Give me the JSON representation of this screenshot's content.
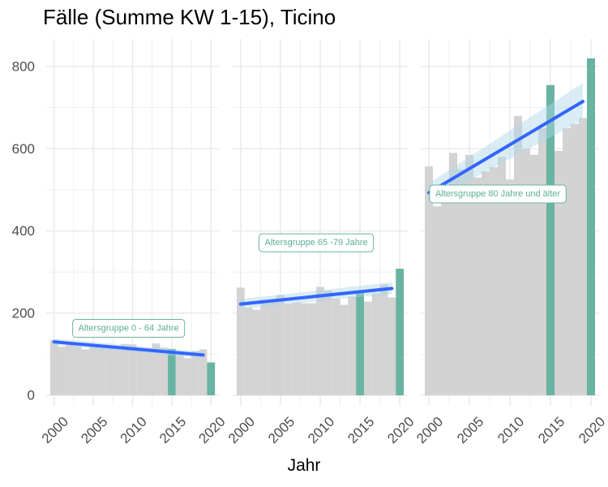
{
  "chart_data": {
    "type": "bar",
    "title": "Fälle (Summe KW 1-15), Ticino",
    "xlabel": "Jahr",
    "ylabel": "",
    "ylim": [
      0,
      860
    ],
    "xlim": [
      1999,
      2021
    ],
    "x_ticks": [
      2000,
      2005,
      2010,
      2015,
      2020
    ],
    "y_ticks": [
      0,
      200,
      400,
      600,
      800
    ],
    "colors": {
      "bar_default": "#d3d3d3",
      "bar_highlight": "#69b3a2",
      "trend_line": "#3366ff",
      "ci_band": "#add8e6",
      "annotation_text": "#5aae98",
      "annotation_border": "#69b3a2",
      "grid": "#ebebeb"
    },
    "highlight_years": [
      2015,
      2020
    ],
    "panels": [
      {
        "annotation": "Altersgruppe 0 - 64 Jahre",
        "annotation_year": 2009.5,
        "annotation_value": 163,
        "years": [
          2000,
          2001,
          2002,
          2003,
          2004,
          2005,
          2006,
          2007,
          2008,
          2009,
          2010,
          2011,
          2012,
          2013,
          2014,
          2015,
          2016,
          2017,
          2018,
          2019,
          2020
        ],
        "values": [
          135,
          118,
          128,
          120,
          112,
          122,
          115,
          118,
          112,
          125,
          124,
          112,
          108,
          126,
          116,
          113,
          98,
          90,
          108,
          112,
          80
        ],
        "trend": {
          "x": [
            2000,
            2019
          ],
          "y": [
            130,
            98
          ]
        },
        "ci": {
          "x": [
            2000,
            2019
          ],
          "upper": [
            138,
            106
          ],
          "lower": [
            122,
            90
          ]
        }
      },
      {
        "annotation": "Altersgruppe 65 -79 Jahre",
        "annotation_year": 2009.5,
        "annotation_value": 371,
        "years": [
          2000,
          2001,
          2002,
          2003,
          2004,
          2005,
          2006,
          2007,
          2008,
          2009,
          2010,
          2011,
          2012,
          2013,
          2014,
          2015,
          2016,
          2017,
          2018,
          2019,
          2020
        ],
        "values": [
          262,
          213,
          208,
          232,
          228,
          244,
          222,
          225,
          224,
          224,
          264,
          255,
          235,
          220,
          240,
          253,
          228,
          248,
          270,
          238,
          308
        ],
        "trend": {
          "x": [
            2000,
            2019
          ],
          "y": [
            222,
            260
          ]
        },
        "ci": {
          "x": [
            2000,
            2019
          ],
          "upper": [
            234,
            275
          ],
          "lower": [
            210,
            247
          ]
        }
      },
      {
        "annotation": "Altersgruppe 80 Jahre und älter",
        "annotation_year": 2008.5,
        "annotation_value": 490,
        "years": [
          2000,
          2001,
          2002,
          2003,
          2004,
          2005,
          2006,
          2007,
          2008,
          2009,
          2010,
          2011,
          2012,
          2013,
          2014,
          2015,
          2016,
          2017,
          2018,
          2019,
          2020
        ],
        "values": [
          557,
          460,
          500,
          590,
          550,
          585,
          530,
          545,
          555,
          580,
          525,
          680,
          600,
          585,
          650,
          755,
          595,
          650,
          660,
          675,
          820
        ],
        "trend": {
          "x": [
            2000,
            2019
          ],
          "y": [
            493,
            715
          ]
        },
        "ci": {
          "x": [
            2000,
            2019
          ],
          "upper": [
            516,
            760
          ],
          "lower": [
            470,
            670
          ]
        }
      }
    ]
  }
}
